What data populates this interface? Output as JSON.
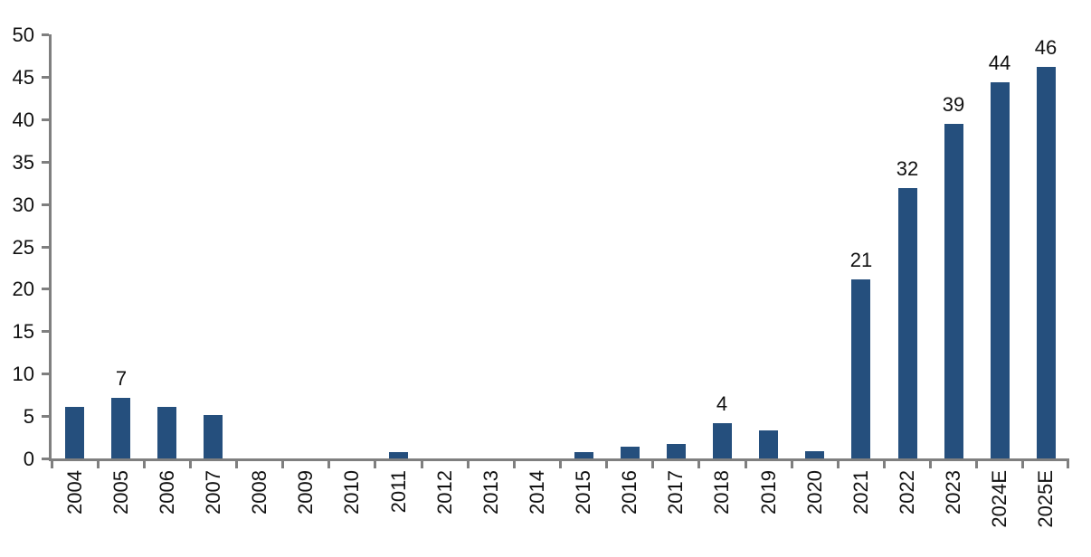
{
  "chart_data": {
    "type": "bar",
    "title": "",
    "xlabel": "",
    "ylabel": "",
    "categories": [
      "2004",
      "2005",
      "2006",
      "2007",
      "2008",
      "2009",
      "2010",
      "2011",
      "2012",
      "2013",
      "2014",
      "2015",
      "2016",
      "2017",
      "2018",
      "2019",
      "2020",
      "2021",
      "2022",
      "2023",
      "2024E",
      "2025E"
    ],
    "values": [
      6.1,
      7.1,
      6.1,
      5.1,
      0,
      0,
      0,
      0.7,
      0,
      0,
      0,
      0.7,
      1.4,
      1.7,
      4.2,
      3.3,
      0.9,
      21.1,
      31.9,
      39.4,
      44.3,
      46.2
    ],
    "bar_labels": [
      "",
      "7",
      "",
      "",
      "",
      "",
      "",
      "",
      "",
      "",
      "",
      "",
      "",
      "",
      "4",
      "",
      "",
      "21",
      "32",
      "39",
      "44",
      "46"
    ],
    "ylim": [
      0,
      50
    ],
    "yticks": [
      0,
      5,
      10,
      15,
      20,
      25,
      30,
      35,
      40,
      45,
      50
    ],
    "grid": false,
    "legend_position": "none",
    "colors": {
      "bar": "#254f7d",
      "axis": "#7f7f7f",
      "text": "#111111",
      "background": "#ffffff"
    }
  }
}
